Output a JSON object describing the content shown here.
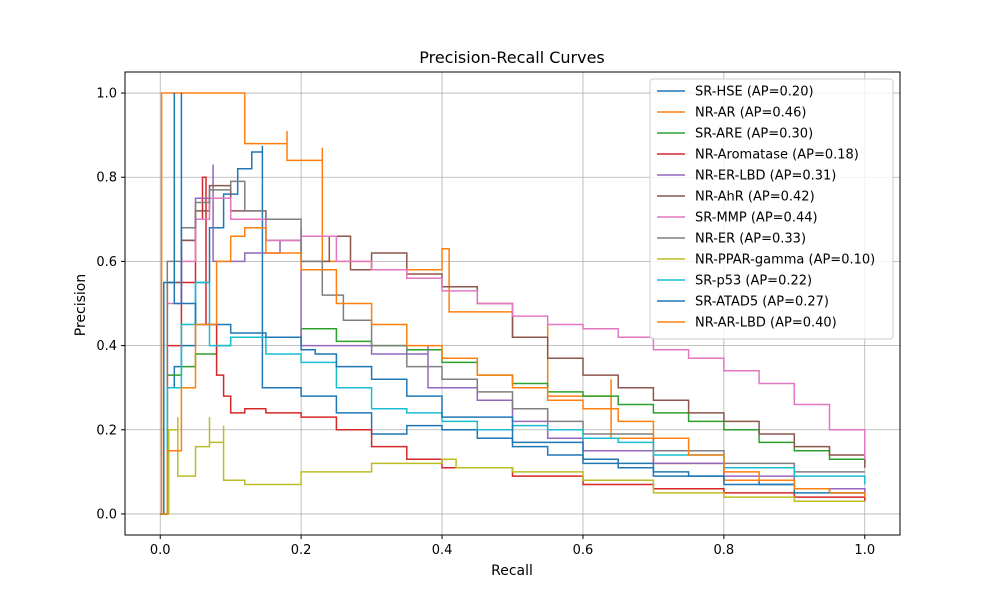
{
  "chart_data": {
    "type": "line",
    "title": "Precision-Recall Curves",
    "xlabel": "Recall",
    "ylabel": "Precision",
    "xlim": [
      -0.05,
      1.05
    ],
    "ylim": [
      -0.05,
      1.05
    ],
    "xticks": [
      0.0,
      0.2,
      0.4,
      0.6,
      0.8,
      1.0
    ],
    "yticks": [
      0.0,
      0.2,
      0.4,
      0.6,
      0.8,
      1.0
    ],
    "grid": true,
    "legend_position": "top-right",
    "series": [
      {
        "name": "SR-HSE (AP=0.20)",
        "color": "#1f77b4",
        "x": [
          0,
          0.01,
          0.02,
          0.03,
          0.05,
          0.07,
          0.09,
          0.11,
          0.13,
          0.145,
          0.145,
          0.2,
          0.25,
          0.3,
          0.35,
          0.4,
          0.45,
          0.5,
          0.55,
          0.6,
          0.65,
          0.7,
          0.75,
          0.8,
          0.85,
          0.9,
          0.95,
          1.0
        ],
        "y": [
          0,
          0.3,
          0.35,
          0.4,
          0.55,
          0.68,
          0.76,
          0.82,
          0.86,
          0.875,
          0.3,
          0.28,
          0.24,
          0.19,
          0.21,
          0.2,
          0.18,
          0.16,
          0.14,
          0.13,
          0.11,
          0.1,
          0.09,
          0.08,
          0.07,
          0.06,
          0.05,
          0.05
        ]
      },
      {
        "name": "NR-AR (AP=0.46)",
        "color": "#ff7f0e",
        "x": [
          0,
          0.002,
          0.12,
          0.12,
          0.18,
          0.18,
          0.23,
          0.23,
          0.3,
          0.4,
          0.41,
          0.5,
          0.55,
          0.55,
          0.64,
          0.64,
          0.7,
          0.8,
          0.9,
          1.0
        ],
        "y": [
          0,
          1.0,
          1.0,
          0.88,
          0.91,
          0.84,
          0.87,
          0.6,
          0.58,
          0.63,
          0.48,
          0.42,
          0.45,
          0.28,
          0.32,
          0.18,
          0.12,
          0.08,
          0.06,
          0.04
        ]
      },
      {
        "name": "SR-ARE (AP=0.30)",
        "color": "#2ca02c",
        "x": [
          0,
          0.01,
          0.03,
          0.05,
          0.08,
          0.1,
          0.15,
          0.2,
          0.25,
          0.3,
          0.35,
          0.4,
          0.45,
          0.5,
          0.55,
          0.6,
          0.65,
          0.7,
          0.75,
          0.8,
          0.85,
          0.9,
          0.95,
          1.0
        ],
        "y": [
          0,
          0.33,
          0.35,
          0.38,
          0.4,
          0.42,
          0.42,
          0.44,
          0.41,
          0.4,
          0.39,
          0.36,
          0.33,
          0.31,
          0.29,
          0.28,
          0.26,
          0.24,
          0.22,
          0.2,
          0.17,
          0.15,
          0.13,
          0.12
        ]
      },
      {
        "name": "NR-Aromatase (AP=0.18)",
        "color": "#d62728",
        "x": [
          0,
          0.01,
          0.03,
          0.05,
          0.06,
          0.065,
          0.065,
          0.08,
          0.09,
          0.1,
          0.12,
          0.15,
          0.2,
          0.25,
          0.3,
          0.35,
          0.4,
          0.5,
          0.6,
          0.7,
          0.8,
          0.9,
          1.0
        ],
        "y": [
          0,
          0.4,
          0.55,
          0.7,
          0.8,
          0.8,
          0.45,
          0.33,
          0.28,
          0.24,
          0.25,
          0.24,
          0.23,
          0.2,
          0.16,
          0.13,
          0.11,
          0.09,
          0.07,
          0.06,
          0.05,
          0.04,
          0.03
        ]
      },
      {
        "name": "NR-ER-LBD (AP=0.31)",
        "color": "#9467bd",
        "x": [
          0,
          0.01,
          0.03,
          0.05,
          0.075,
          0.075,
          0.12,
          0.17,
          0.2,
          0.2,
          0.3,
          0.38,
          0.38,
          0.45,
          0.5,
          0.55,
          0.6,
          0.7,
          0.8,
          0.9,
          1.0
        ],
        "y": [
          0,
          0.55,
          0.65,
          0.75,
          0.83,
          0.6,
          0.62,
          0.65,
          0.68,
          0.4,
          0.38,
          0.4,
          0.3,
          0.27,
          0.22,
          0.18,
          0.15,
          0.12,
          0.09,
          0.06,
          0.04
        ]
      },
      {
        "name": "NR-AhR (AP=0.42)",
        "color": "#8c564b",
        "x": [
          0,
          0.01,
          0.03,
          0.05,
          0.07,
          0.1,
          0.15,
          0.2,
          0.24,
          0.27,
          0.3,
          0.35,
          0.4,
          0.45,
          0.5,
          0.55,
          0.6,
          0.65,
          0.7,
          0.75,
          0.8,
          0.85,
          0.9,
          0.95,
          1.0
        ],
        "y": [
          0,
          0.55,
          0.65,
          0.72,
          0.78,
          0.72,
          0.65,
          0.6,
          0.66,
          0.58,
          0.62,
          0.57,
          0.54,
          0.5,
          0.42,
          0.37,
          0.33,
          0.3,
          0.27,
          0.24,
          0.22,
          0.19,
          0.16,
          0.14,
          0.11
        ]
      },
      {
        "name": "SR-MMP (AP=0.44)",
        "color": "#e377c2",
        "x": [
          0,
          0.01,
          0.03,
          0.05,
          0.07,
          0.1,
          0.15,
          0.2,
          0.25,
          0.3,
          0.35,
          0.4,
          0.45,
          0.5,
          0.55,
          0.6,
          0.65,
          0.7,
          0.75,
          0.8,
          0.85,
          0.9,
          0.95,
          1.0
        ],
        "y": [
          0,
          0.5,
          0.6,
          0.7,
          0.75,
          0.7,
          0.65,
          0.66,
          0.6,
          0.58,
          0.56,
          0.53,
          0.5,
          0.47,
          0.45,
          0.44,
          0.42,
          0.39,
          0.37,
          0.34,
          0.31,
          0.26,
          0.2,
          0.13
        ]
      },
      {
        "name": "NR-ER (AP=0.33)",
        "color": "#7f7f7f",
        "x": [
          0,
          0.01,
          0.03,
          0.05,
          0.07,
          0.1,
          0.12,
          0.15,
          0.2,
          0.23,
          0.26,
          0.3,
          0.35,
          0.4,
          0.45,
          0.5,
          0.55,
          0.6,
          0.7,
          0.8,
          0.9,
          1.0
        ],
        "y": [
          0,
          0.6,
          0.68,
          0.74,
          0.77,
          0.79,
          0.72,
          0.7,
          0.6,
          0.52,
          0.46,
          0.4,
          0.35,
          0.32,
          0.29,
          0.25,
          0.22,
          0.19,
          0.15,
          0.12,
          0.1,
          0.1
        ]
      },
      {
        "name": "NR-PPAR-gamma (AP=0.10)",
        "color": "#bcbd22",
        "x": [
          0,
          0.012,
          0.025,
          0.025,
          0.05,
          0.07,
          0.07,
          0.09,
          0.09,
          0.12,
          0.2,
          0.3,
          0.4,
          0.42,
          0.42,
          0.5,
          0.6,
          0.7,
          0.8,
          0.9,
          1.0
        ],
        "y": [
          0,
          0.2,
          0.23,
          0.09,
          0.16,
          0.23,
          0.17,
          0.21,
          0.08,
          0.07,
          0.1,
          0.12,
          0.13,
          0.13,
          0.11,
          0.1,
          0.08,
          0.05,
          0.04,
          0.03,
          0.03
        ]
      },
      {
        "name": "SR-p53 (AP=0.22)",
        "color": "#17becf",
        "x": [
          0,
          0.01,
          0.03,
          0.05,
          0.07,
          0.1,
          0.12,
          0.15,
          0.2,
          0.25,
          0.3,
          0.35,
          0.4,
          0.45,
          0.5,
          0.55,
          0.6,
          0.65,
          0.7,
          0.8,
          0.9,
          1.0
        ],
        "y": [
          0,
          0.3,
          0.45,
          0.55,
          0.4,
          0.42,
          0.42,
          0.38,
          0.36,
          0.3,
          0.25,
          0.24,
          0.22,
          0.2,
          0.21,
          0.2,
          0.18,
          0.17,
          0.14,
          0.11,
          0.09,
          0.07
        ]
      },
      {
        "name": "SR-ATAD5 (AP=0.27)",
        "color": "#1f77b4",
        "x": [
          0,
          0.005,
          0.02,
          0.02,
          0.03,
          0.03,
          0.05,
          0.1,
          0.15,
          0.2,
          0.22,
          0.25,
          0.3,
          0.35,
          0.4,
          0.5,
          0.6,
          0.7,
          0.8,
          0.9,
          1.0
        ],
        "y": [
          0,
          0.55,
          1.0,
          0.5,
          1.0,
          0.5,
          0.45,
          0.43,
          0.42,
          0.39,
          0.38,
          0.35,
          0.32,
          0.28,
          0.23,
          0.17,
          0.12,
          0.09,
          0.07,
          0.05,
          0.04
        ]
      },
      {
        "name": "NR-AR-LBD (AP=0.40)",
        "color": "#ff7f0e",
        "x": [
          0,
          0.01,
          0.03,
          0.05,
          0.08,
          0.1,
          0.12,
          0.15,
          0.2,
          0.25,
          0.3,
          0.35,
          0.4,
          0.45,
          0.5,
          0.55,
          0.6,
          0.65,
          0.7,
          0.75,
          0.8,
          0.85,
          0.9,
          0.95,
          1.0
        ],
        "y": [
          0,
          0.15,
          0.3,
          0.45,
          0.6,
          0.66,
          0.68,
          0.62,
          0.58,
          0.5,
          0.45,
          0.4,
          0.37,
          0.33,
          0.3,
          0.27,
          0.25,
          0.22,
          0.18,
          0.14,
          0.1,
          0.08,
          0.06,
          0.05,
          0.04
        ]
      }
    ]
  }
}
